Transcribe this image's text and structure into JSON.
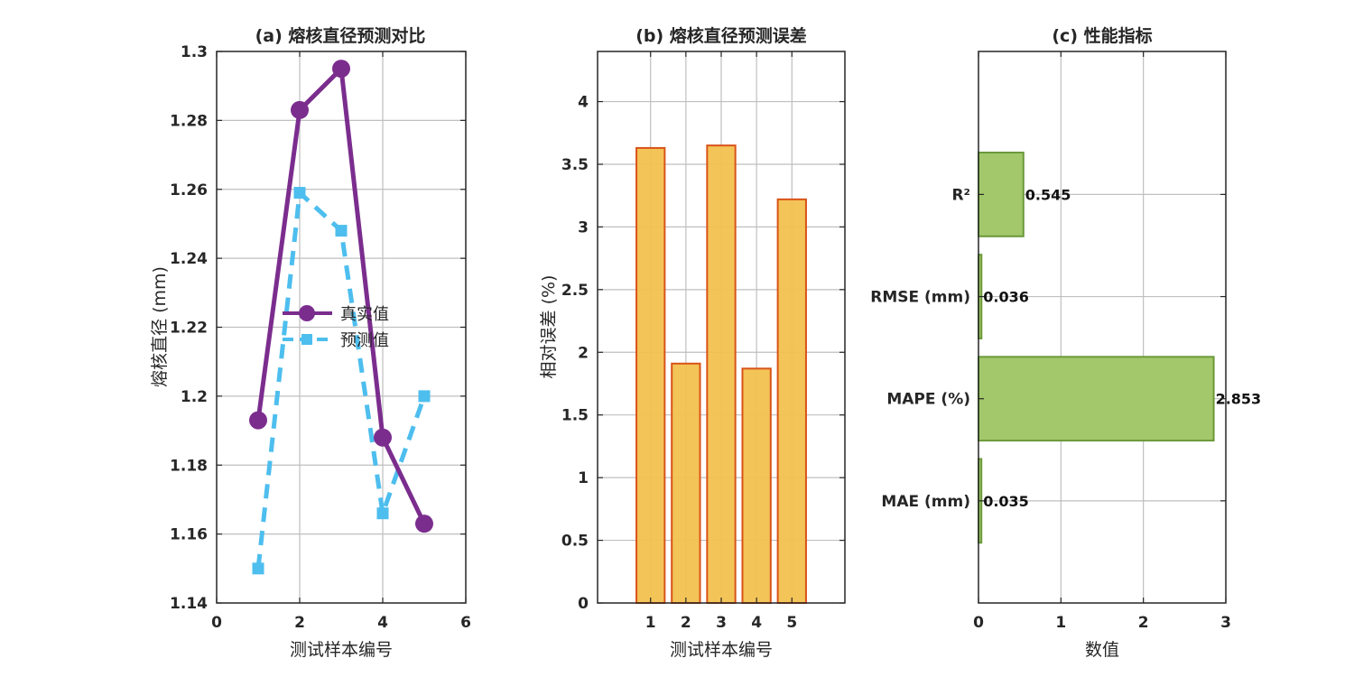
{
  "colors": {
    "actual": "#7B2D8E",
    "predicted": "#4DBEEE",
    "bar_fill": "#F2C14E",
    "bar_edge": "#D95319",
    "hbar_fill": "#A3C86B",
    "hbar_edge": "#6A9A3A",
    "grid": "#BFBFBF",
    "axis": "#262626"
  },
  "chart_data": [
    {
      "type": "line",
      "title": "(a) 熔核直径预测对比",
      "xlabel": "测试样本编号",
      "ylabel": "熔核直径 (mm)",
      "xlim": [
        0,
        6
      ],
      "ylim": [
        1.14,
        1.3
      ],
      "xticks": [
        0,
        2,
        4,
        6
      ],
      "xtick_labels": [
        "0",
        "2",
        "4",
        "6"
      ],
      "yticks": [
        1.14,
        1.16,
        1.18,
        1.2,
        1.22,
        1.24,
        1.26,
        1.28,
        1.3
      ],
      "ytick_labels": [
        "1.14",
        "1.16",
        "1.18",
        "1.2",
        "1.22",
        "1.24",
        "1.26",
        "1.28",
        "1.3"
      ],
      "grid": true,
      "legend_position": "center",
      "series": [
        {
          "name": "真实值",
          "x": [
            1,
            2,
            3,
            4,
            5
          ],
          "y": [
            1.193,
            1.283,
            1.295,
            1.188,
            1.163
          ]
        },
        {
          "name": "预测值",
          "x": [
            1,
            2,
            3,
            4,
            5
          ],
          "y": [
            1.15,
            1.259,
            1.248,
            1.166,
            1.2
          ]
        }
      ]
    },
    {
      "type": "bar",
      "title": "(b) 熔核直径预测误差",
      "xlabel": "测试样本编号",
      "ylabel": "相对误差 (%)",
      "categories": [
        "1",
        "2",
        "3",
        "4",
        "5"
      ],
      "values": [
        3.63,
        1.91,
        3.65,
        1.87,
        3.22
      ],
      "ylim": [
        0,
        4.4
      ],
      "yticks": [
        0,
        0.5,
        1,
        1.5,
        2,
        2.5,
        3,
        3.5,
        4
      ],
      "ytick_labels": [
        "0",
        "0.5",
        "1",
        "1.5",
        "2",
        "2.5",
        "3",
        "3.5",
        "4"
      ],
      "grid": true
    },
    {
      "type": "bar",
      "orientation": "horizontal",
      "title": "(c) 性能指标",
      "xlabel": "数值",
      "categories": [
        "MAE (mm)",
        "MAPE (%)",
        "RMSE (mm)",
        "R²"
      ],
      "values": [
        0.035,
        2.853,
        0.036,
        0.545
      ],
      "value_labels": [
        "0.035",
        "2.853",
        "0.036",
        "0.545"
      ],
      "xlim": [
        0,
        3
      ],
      "xticks": [
        0,
        1,
        2,
        3
      ],
      "xtick_labels": [
        "0",
        "1",
        "2",
        "3"
      ],
      "grid": true
    }
  ]
}
